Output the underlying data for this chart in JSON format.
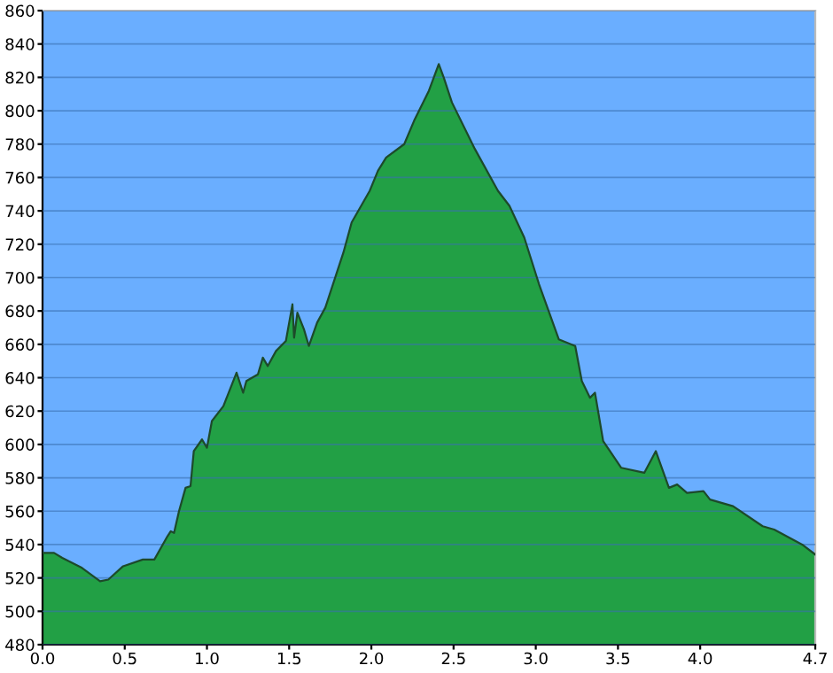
{
  "chart_data": {
    "type": "area",
    "x": [
      0,
      0.07,
      0.12,
      0.24,
      0.35,
      0.4,
      0.49,
      0.61,
      0.68,
      0.76,
      0.78,
      0.8,
      0.83,
      0.87,
      0.9,
      0.92,
      0.97,
      1.0,
      1.03,
      1.1,
      1.18,
      1.22,
      1.24,
      1.31,
      1.34,
      1.37,
      1.42,
      1.48,
      1.52,
      1.53,
      1.55,
      1.59,
      1.62,
      1.67,
      1.72,
      1.83,
      1.88,
      1.99,
      2.04,
      2.09,
      2.2,
      2.26,
      2.35,
      2.41,
      2.44,
      2.49,
      2.63,
      2.77,
      2.84,
      2.93,
      3.02,
      3.14,
      3.24,
      3.28,
      3.33,
      3.36,
      3.41,
      3.52,
      3.66,
      3.73,
      3.81,
      3.86,
      3.92,
      4.02,
      4.06,
      4.2,
      4.38,
      4.45,
      4.62,
      4.7
    ],
    "series": [
      {
        "color": "#22a045",
        "values": [
          535,
          535,
          532,
          526,
          518,
          519,
          527,
          531,
          531,
          545,
          548,
          547,
          560,
          574,
          575,
          596,
          603,
          598,
          614,
          623,
          643,
          631,
          638,
          642,
          652,
          647,
          656,
          662,
          684,
          664,
          679,
          669,
          659,
          673,
          682,
          715,
          733,
          752,
          764,
          772,
          780,
          794,
          812,
          828,
          820,
          805,
          777,
          752,
          743,
          724,
          696,
          663,
          659,
          638,
          628,
          631,
          602,
          586,
          583,
          596,
          574,
          576,
          571,
          572,
          567,
          563,
          551,
          549,
          540,
          534
        ]
      }
    ],
    "xlim": [
      0,
      4.7
    ],
    "ylim": [
      480,
      860
    ],
    "xticks": [
      {
        "value": 0,
        "label": "0.0"
      },
      0.5,
      {
        "value": 1,
        "label": "1.0"
      },
      1.5,
      {
        "value": 2,
        "label": "2.0"
      },
      2.5,
      {
        "value": 3,
        "label": "3.0"
      },
      3.5,
      {
        "value": 4,
        "label": "4.0"
      },
      4.7
    ],
    "yticks": [
      480,
      500,
      520,
      540,
      560,
      580,
      600,
      620,
      640,
      660,
      680,
      700,
      720,
      740,
      760,
      780,
      800,
      820,
      840,
      860
    ],
    "grid": "y"
  }
}
